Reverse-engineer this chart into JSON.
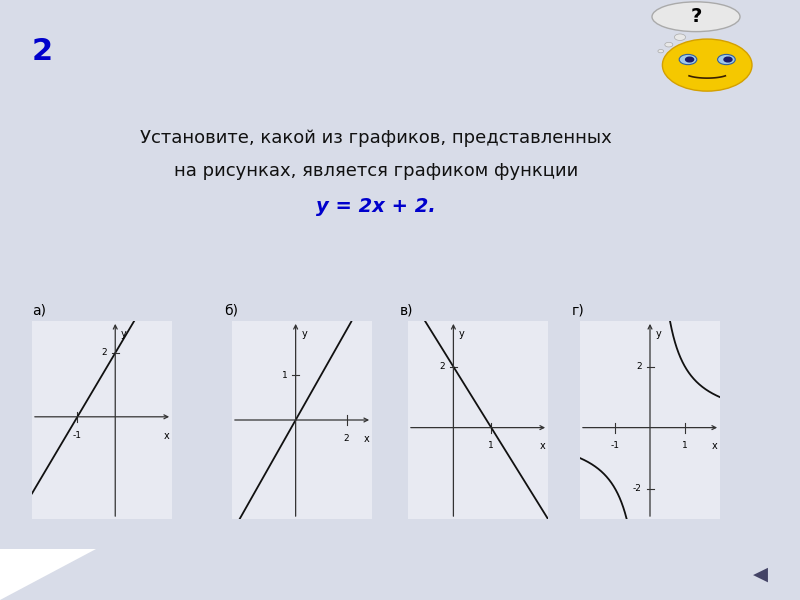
{
  "title_number": "2",
  "title_color": "#0000cc",
  "question_line1": "Установите, какой из графиков, представленных",
  "question_line2": "на рисунках, является графиком функции",
  "formula": "y = 2x + 2.",
  "formula_color": "#0000cc",
  "graph_labels": [
    "а)",
    "б)",
    "в)",
    "г)"
  ],
  "bg_color": "#d8dce8",
  "content_bg": "#e8eaf2",
  "top_stripe_color": "#2244aa",
  "separator_color": "#3355bb",
  "bottom_bar_color": "#1a3a99",
  "arrow_button_color": "#c8c0d8",
  "text_color": "#111111",
  "axis_color": "#333333",
  "graph_line_color": "#111111"
}
